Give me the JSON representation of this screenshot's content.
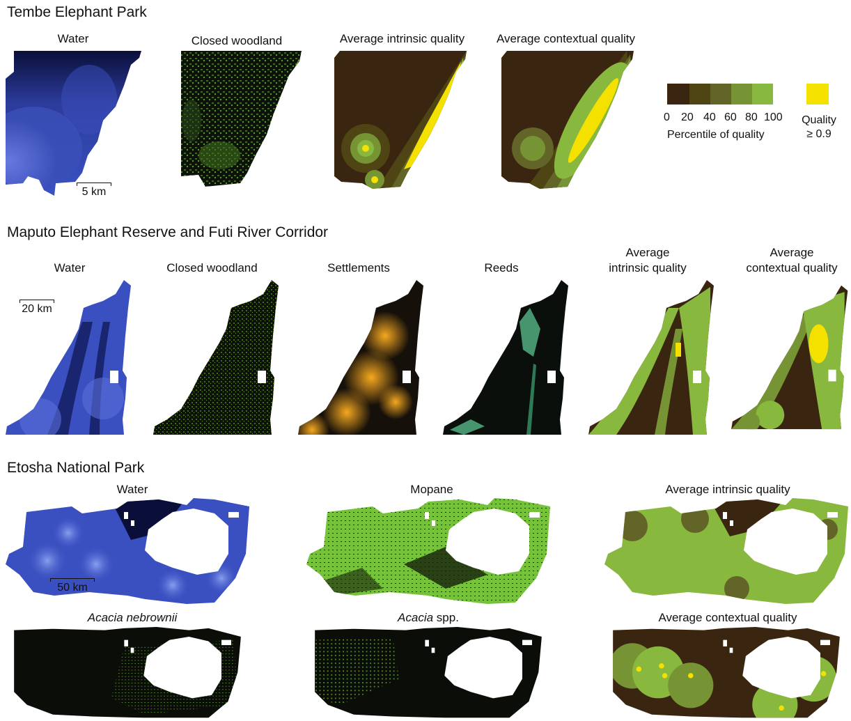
{
  "sections": {
    "tembe": {
      "title": "Tembe Elephant Park",
      "labels": [
        "Water",
        "Closed woodland",
        "Average intrinsic quality",
        "Average contextual quality"
      ],
      "scale": "5 km"
    },
    "maputo": {
      "title": "Maputo Elephant Reserve and Futi River Corridor",
      "labels": [
        "Water",
        "Closed woodland",
        "Settlements",
        "Reeds"
      ],
      "intrinsic": [
        "Average",
        "intrinsic quality"
      ],
      "contextual": [
        "Average",
        "contextual quality"
      ],
      "scale": "20 km"
    },
    "etosha": {
      "title": "Etosha National Park",
      "top_labels": [
        "Water",
        "Mopane",
        "Average intrinsic quality"
      ],
      "acacia_neb": "Acacia nebrownii",
      "acacia_spp_genus": "Acacia",
      "acacia_spp_suffix": " spp.",
      "contextual": "Average contextual quality",
      "scale": "50 km"
    }
  },
  "legend": {
    "ticks": [
      "0",
      "20",
      "40",
      "60",
      "80",
      "100"
    ],
    "caption": "Percentile of quality",
    "quality_line1": "Quality",
    "quality_line2": "≥ 0.9",
    "colors": [
      "#3a2510",
      "#4f4413",
      "#636427",
      "#779434",
      "#88b93e"
    ],
    "high_color": "#f5e100"
  },
  "colors": {
    "water_light": "#5b73d9",
    "water_dark": "#0a0f3a",
    "woodland": "#7fc13c",
    "settlement": "#f0a020",
    "reeds": "#5fcf9a",
    "quality_dark": "#3a2510",
    "quality_mid": "#6d7a2a",
    "quality_light": "#8dbf3f",
    "quality_high": "#f5e100"
  }
}
